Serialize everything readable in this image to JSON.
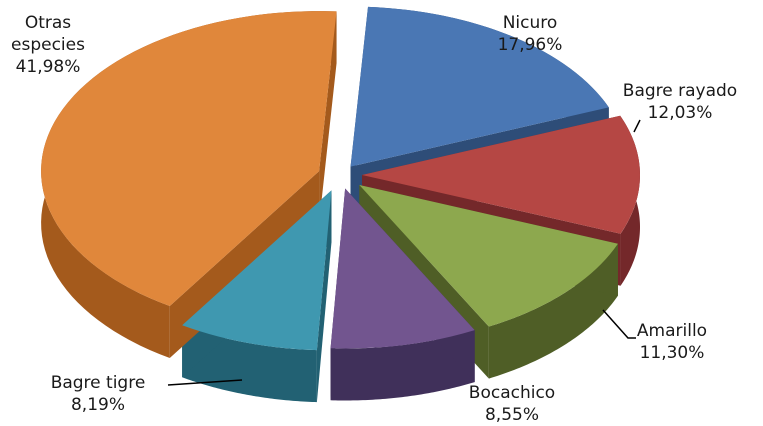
{
  "chart_data": {
    "type": "pie",
    "style": "3d-exploded",
    "slices": [
      {
        "name": "Nicuro",
        "value": 17.96,
        "label": "17,96%",
        "color": "#4a77b4",
        "side": "#2e4d78"
      },
      {
        "name": "Bagre rayado",
        "value": 12.03,
        "label": "12,03%",
        "color": "#b54744",
        "side": "#74282a"
      },
      {
        "name": "Amarillo",
        "value": 11.3,
        "label": "11,30%",
        "color": "#8da84e",
        "side": "#4f5e26"
      },
      {
        "name": "Bocachico",
        "value": 8.55,
        "label": "8,55%",
        "color": "#72558f",
        "side": "#40305a"
      },
      {
        "name": "Bagre tigre",
        "value": 8.19,
        "label": "8,19%",
        "color": "#3f98b0",
        "side": "#226173"
      },
      {
        "name": "Otras\nespecies",
        "value": 41.98,
        "label": "41,98%",
        "color": "#e0873b",
        "side": "#a45a1c"
      }
    ]
  }
}
